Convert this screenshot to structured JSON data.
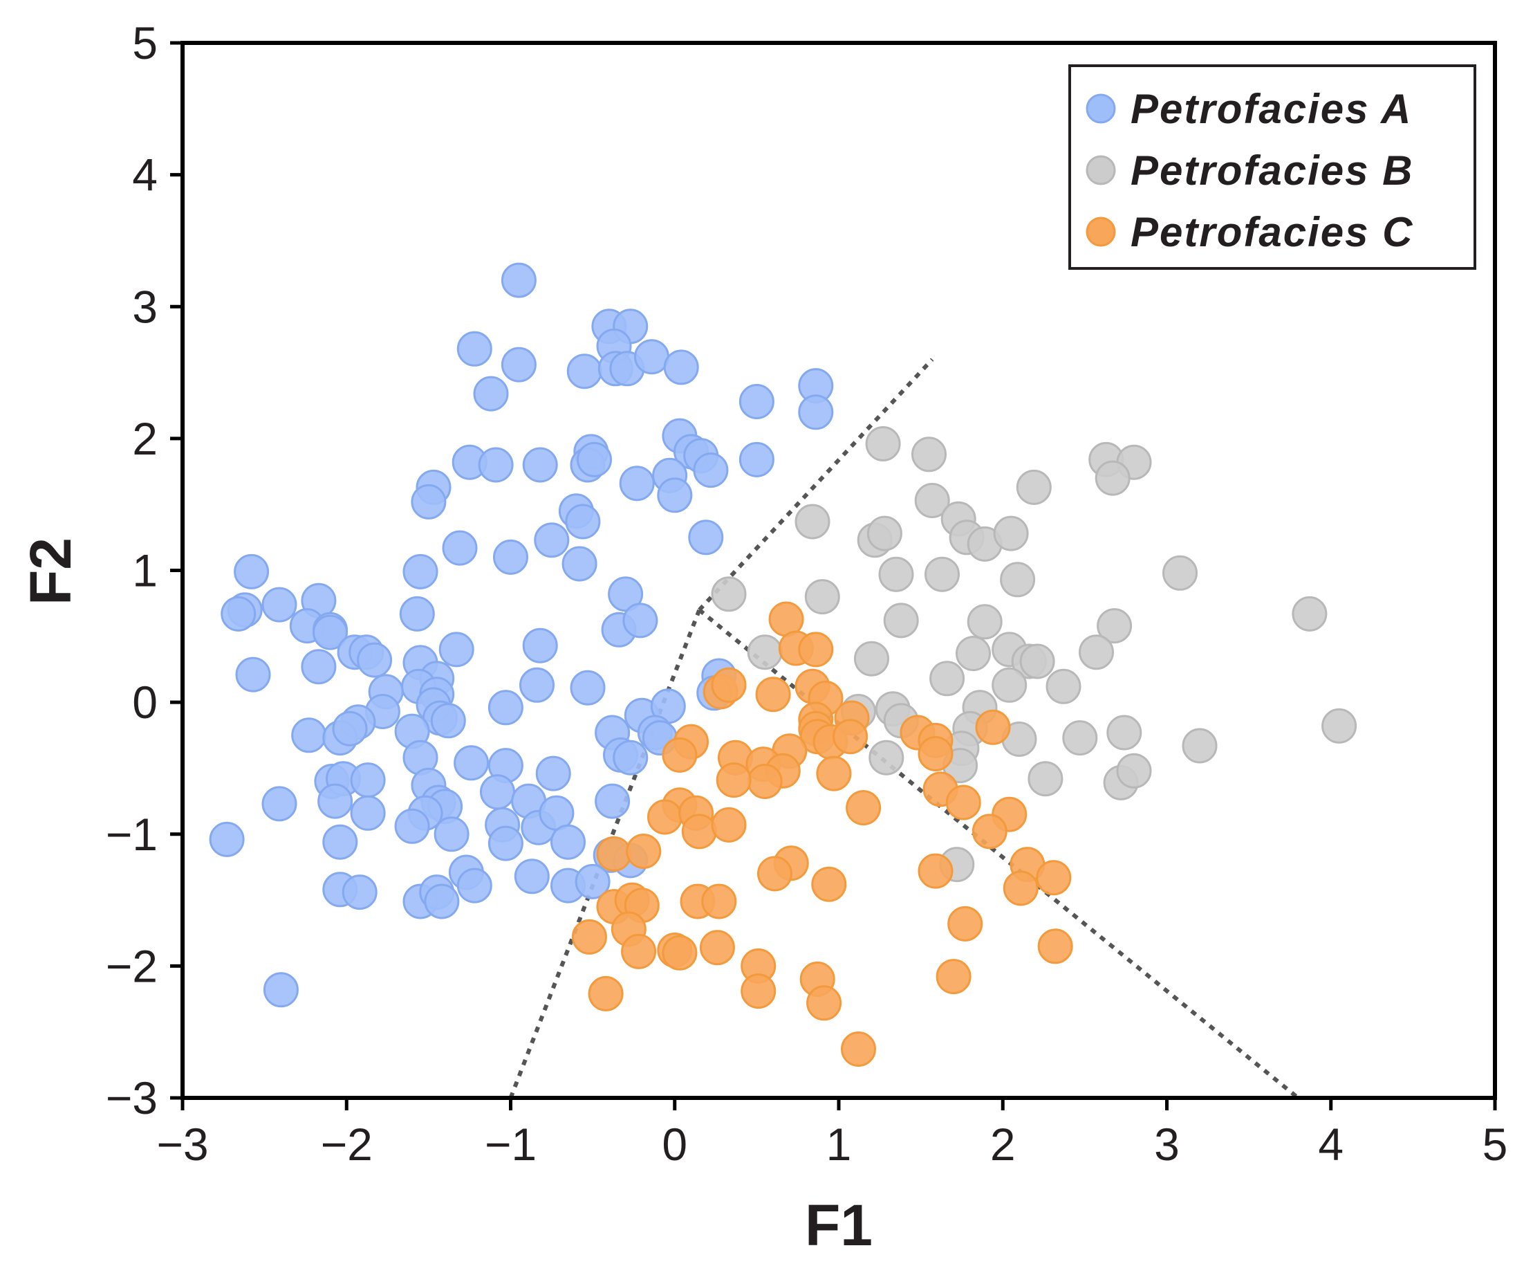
{
  "chart_data": {
    "type": "scatter",
    "title": "",
    "xlabel": "F1",
    "ylabel": "F2",
    "xlim": [
      -3,
      5
    ],
    "ylim": [
      -3,
      5
    ],
    "xticks": [
      -3,
      -2,
      -1,
      0,
      1,
      2,
      3,
      4,
      5
    ],
    "yticks": [
      -3,
      -2,
      -1,
      0,
      1,
      2,
      3,
      4,
      5
    ],
    "xtick_labels": [
      "−3",
      "−2",
      "−1",
      "0",
      "1",
      "2",
      "3",
      "4",
      "5"
    ],
    "ytick_labels": [
      "−3",
      "−2",
      "−1",
      "0",
      "1",
      "2",
      "3",
      "4",
      "5"
    ],
    "grid": false,
    "legend_position": "top-right",
    "boundaries": [
      {
        "name": "boundary-A-left",
        "x": [
          -1.0,
          0.15
        ],
        "y": [
          -3.0,
          0.7
        ]
      },
      {
        "name": "boundary-A-upper",
        "x": [
          0.15,
          1.57
        ],
        "y": [
          0.7,
          2.6
        ]
      },
      {
        "name": "boundary-B-C",
        "x": [
          0.15,
          3.8
        ],
        "y": [
          0.7,
          -3.0
        ]
      }
    ],
    "series": [
      {
        "name": "Petrofacies A",
        "color": "#9ebefa",
        "points": [
          [
            -0.95,
            3.2
          ],
          [
            -0.4,
            2.85
          ],
          [
            -0.27,
            2.85
          ],
          [
            -0.37,
            2.7
          ],
          [
            -1.22,
            2.68
          ],
          [
            -0.95,
            2.56
          ],
          [
            -0.55,
            2.51
          ],
          [
            -0.36,
            2.53
          ],
          [
            -0.29,
            2.53
          ],
          [
            -0.14,
            2.62
          ],
          [
            0.04,
            2.54
          ],
          [
            -1.12,
            2.34
          ],
          [
            0.5,
            2.28
          ],
          [
            0.86,
            2.4
          ],
          [
            0.86,
            2.2
          ],
          [
            0.03,
            2.02
          ],
          [
            -0.51,
            1.9
          ],
          [
            -0.53,
            1.8
          ],
          [
            -0.49,
            1.84
          ],
          [
            -1.25,
            1.82
          ],
          [
            -1.09,
            1.8
          ],
          [
            -0.82,
            1.8
          ],
          [
            0.1,
            1.9
          ],
          [
            0.16,
            1.87
          ],
          [
            0.22,
            1.76
          ],
          [
            0.5,
            1.84
          ],
          [
            -1.47,
            1.63
          ],
          [
            -1.5,
            1.52
          ],
          [
            -0.03,
            1.72
          ],
          [
            -0.23,
            1.66
          ],
          [
            0.0,
            1.57
          ],
          [
            -0.6,
            1.45
          ],
          [
            -0.56,
            1.37
          ],
          [
            -0.75,
            1.23
          ],
          [
            -1.31,
            1.17
          ],
          [
            -1.0,
            1.1
          ],
          [
            0.19,
            1.25
          ],
          [
            -0.58,
            1.05
          ],
          [
            -1.55,
            0.99
          ],
          [
            -2.58,
            0.99
          ],
          [
            -2.62,
            0.7
          ],
          [
            -2.66,
            0.67
          ],
          [
            -2.41,
            0.74
          ],
          [
            -2.17,
            0.77
          ],
          [
            -2.24,
            0.58
          ],
          [
            -2.1,
            0.55
          ],
          [
            -2.1,
            0.53
          ],
          [
            -1.57,
            0.67
          ],
          [
            -0.3,
            0.82
          ],
          [
            -0.34,
            0.55
          ],
          [
            -0.21,
            0.62
          ],
          [
            -1.95,
            0.38
          ],
          [
            -1.88,
            0.38
          ],
          [
            -1.83,
            0.32
          ],
          [
            -1.33,
            0.4
          ],
          [
            -0.82,
            0.43
          ],
          [
            -2.57,
            0.21
          ],
          [
            -2.17,
            0.27
          ],
          [
            -1.55,
            0.3
          ],
          [
            -1.45,
            0.18
          ],
          [
            -1.56,
            0.12
          ],
          [
            -1.76,
            0.08
          ],
          [
            -1.45,
            0.06
          ],
          [
            -1.47,
            -0.02
          ],
          [
            -1.78,
            -0.07
          ],
          [
            -1.93,
            -0.15
          ],
          [
            -1.43,
            -0.12
          ],
          [
            -1.38,
            -0.14
          ],
          [
            -1.6,
            -0.22
          ],
          [
            -0.84,
            0.13
          ],
          [
            -0.53,
            0.11
          ],
          [
            -1.03,
            -0.04
          ],
          [
            -0.2,
            -0.1
          ],
          [
            -0.04,
            -0.03
          ],
          [
            0.27,
            0.2
          ],
          [
            0.24,
            0.07
          ],
          [
            -2.23,
            -0.25
          ],
          [
            -2.04,
            -0.27
          ],
          [
            -1.98,
            -0.2
          ],
          [
            -0.38,
            -0.23
          ],
          [
            -0.12,
            -0.23
          ],
          [
            -0.09,
            -0.27
          ],
          [
            -1.55,
            -0.42
          ],
          [
            -1.24,
            -0.46
          ],
          [
            -1.03,
            -0.48
          ],
          [
            -0.33,
            -0.4
          ],
          [
            -0.27,
            -0.42
          ],
          [
            -2.09,
            -0.6
          ],
          [
            -2.02,
            -0.58
          ],
          [
            -1.87,
            -0.59
          ],
          [
            -1.5,
            -0.63
          ],
          [
            -0.74,
            -0.54
          ],
          [
            -2.41,
            -0.77
          ],
          [
            -2.07,
            -0.75
          ],
          [
            -1.44,
            -0.76
          ],
          [
            -1.4,
            -0.79
          ],
          [
            -1.08,
            -0.68
          ],
          [
            -0.89,
            -0.75
          ],
          [
            -0.38,
            -0.75
          ],
          [
            -1.87,
            -0.84
          ],
          [
            -1.52,
            -0.84
          ],
          [
            -1.6,
            -0.94
          ],
          [
            -1.05,
            -0.93
          ],
          [
            -0.83,
            -0.95
          ],
          [
            -0.72,
            -0.84
          ],
          [
            -1.36,
            -1.0
          ],
          [
            -1.03,
            -1.07
          ],
          [
            -0.65,
            -1.06
          ],
          [
            -2.73,
            -1.04
          ],
          [
            -2.04,
            -1.06
          ],
          [
            -0.39,
            -1.16
          ],
          [
            -0.27,
            -1.2
          ],
          [
            -1.27,
            -1.29
          ],
          [
            -0.87,
            -1.32
          ],
          [
            -2.04,
            -1.42
          ],
          [
            -1.92,
            -1.44
          ],
          [
            -1.22,
            -1.39
          ],
          [
            -0.65,
            -1.39
          ],
          [
            -0.5,
            -1.36
          ],
          [
            -1.55,
            -1.51
          ],
          [
            -1.45,
            -1.44
          ],
          [
            -1.42,
            -1.51
          ],
          [
            -2.4,
            -2.18
          ]
        ]
      },
      {
        "name": "Petrofacies B",
        "color": "#cccccc",
        "points": [
          [
            1.27,
            1.96
          ],
          [
            1.55,
            1.88
          ],
          [
            2.63,
            1.84
          ],
          [
            2.8,
            1.82
          ],
          [
            2.67,
            1.7
          ],
          [
            2.19,
            1.63
          ],
          [
            1.57,
            1.53
          ],
          [
            1.73,
            1.39
          ],
          [
            0.84,
            1.37
          ],
          [
            1.22,
            1.23
          ],
          [
            1.28,
            1.28
          ],
          [
            1.78,
            1.25
          ],
          [
            1.89,
            1.2
          ],
          [
            2.05,
            1.28
          ],
          [
            1.35,
            0.97
          ],
          [
            1.63,
            0.97
          ],
          [
            2.09,
            0.93
          ],
          [
            3.08,
            0.98
          ],
          [
            0.33,
            0.82
          ],
          [
            0.9,
            0.8
          ],
          [
            1.38,
            0.62
          ],
          [
            1.89,
            0.61
          ],
          [
            2.68,
            0.58
          ],
          [
            3.87,
            0.67
          ],
          [
            0.55,
            0.38
          ],
          [
            1.2,
            0.33
          ],
          [
            1.82,
            0.37
          ],
          [
            2.04,
            0.4
          ],
          [
            2.16,
            0.31
          ],
          [
            2.21,
            0.31
          ],
          [
            2.57,
            0.38
          ],
          [
            1.66,
            0.18
          ],
          [
            2.04,
            0.13
          ],
          [
            2.37,
            0.12
          ],
          [
            1.12,
            -0.07
          ],
          [
            1.33,
            -0.05
          ],
          [
            1.38,
            -0.14
          ],
          [
            1.86,
            -0.04
          ],
          [
            1.8,
            -0.2
          ],
          [
            2.1,
            -0.28
          ],
          [
            2.47,
            -0.27
          ],
          [
            2.74,
            -0.23
          ],
          [
            3.2,
            -0.33
          ],
          [
            4.05,
            -0.18
          ],
          [
            1.29,
            -0.42
          ],
          [
            1.75,
            -0.35
          ],
          [
            1.74,
            -0.48
          ],
          [
            2.26,
            -0.58
          ],
          [
            2.72,
            -0.61
          ],
          [
            2.8,
            -0.52
          ],
          [
            1.72,
            -1.23
          ]
        ]
      },
      {
        "name": "Petrofacies C",
        "color": "#f8a65a",
        "points": [
          [
            0.68,
            0.63
          ],
          [
            0.74,
            0.41
          ],
          [
            0.86,
            0.4
          ],
          [
            0.28,
            0.08
          ],
          [
            0.33,
            0.13
          ],
          [
            0.6,
            0.06
          ],
          [
            0.84,
            0.12
          ],
          [
            0.92,
            0.03
          ],
          [
            0.86,
            -0.13
          ],
          [
            0.86,
            -0.2
          ],
          [
            1.08,
            -0.12
          ],
          [
            0.87,
            -0.26
          ],
          [
            0.95,
            -0.3
          ],
          [
            1.07,
            -0.26
          ],
          [
            1.48,
            -0.23
          ],
          [
            1.59,
            -0.29
          ],
          [
            1.59,
            -0.39
          ],
          [
            1.94,
            -0.19
          ],
          [
            0.1,
            -0.3
          ],
          [
            0.03,
            -0.4
          ],
          [
            0.37,
            -0.42
          ],
          [
            0.7,
            -0.37
          ],
          [
            0.54,
            -0.47
          ],
          [
            0.66,
            -0.52
          ],
          [
            0.55,
            -0.6
          ],
          [
            0.36,
            -0.59
          ],
          [
            0.97,
            -0.54
          ],
          [
            1.62,
            -0.66
          ],
          [
            1.76,
            -0.76
          ],
          [
            1.15,
            -0.8
          ],
          [
            0.03,
            -0.78
          ],
          [
            -0.06,
            -0.87
          ],
          [
            0.13,
            -0.84
          ],
          [
            0.15,
            -0.98
          ],
          [
            0.33,
            -0.93
          ],
          [
            2.04,
            -0.85
          ],
          [
            1.92,
            -0.98
          ],
          [
            -0.37,
            -1.15
          ],
          [
            -0.19,
            -1.13
          ],
          [
            0.71,
            -1.22
          ],
          [
            0.61,
            -1.3
          ],
          [
            0.94,
            -1.38
          ],
          [
            1.59,
            -1.28
          ],
          [
            2.15,
            -1.23
          ],
          [
            2.31,
            -1.33
          ],
          [
            2.11,
            -1.41
          ],
          [
            -0.37,
            -1.55
          ],
          [
            -0.26,
            -1.5
          ],
          [
            -0.2,
            -1.54
          ],
          [
            -0.28,
            -1.72
          ],
          [
            0.14,
            -1.51
          ],
          [
            0.27,
            -1.51
          ],
          [
            -0.52,
            -1.78
          ],
          [
            -0.22,
            -1.89
          ],
          [
            0.0,
            -1.88
          ],
          [
            0.03,
            -1.9
          ],
          [
            0.26,
            -1.86
          ],
          [
            1.77,
            -1.68
          ],
          [
            2.32,
            -1.85
          ],
          [
            -0.42,
            -2.21
          ],
          [
            0.51,
            -2.0
          ],
          [
            0.51,
            -2.19
          ],
          [
            0.87,
            -2.1
          ],
          [
            0.91,
            -2.28
          ],
          [
            1.7,
            -2.08
          ],
          [
            1.12,
            -2.63
          ]
        ]
      }
    ]
  }
}
